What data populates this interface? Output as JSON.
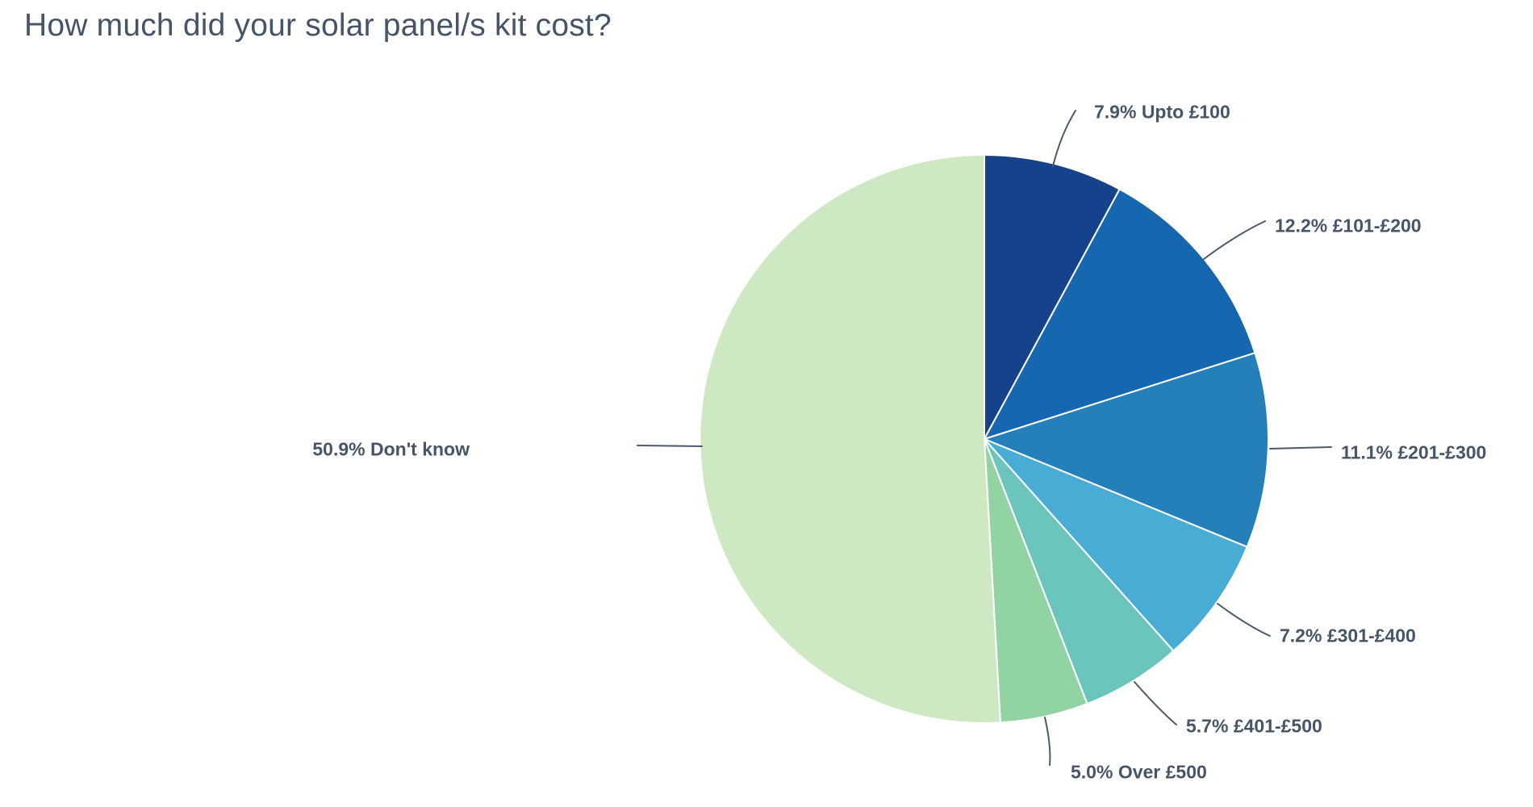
{
  "page": {
    "background": "#ffffff"
  },
  "chart_data": {
    "type": "pie",
    "title": "How much did your solar panel/s kit cost?",
    "direction": "clockwise",
    "start_angle_deg": 0,
    "total_percent": 100.0,
    "labels_position": "outside with leader lines",
    "label_color": "#475569",
    "leader_color": "#4a5a6a",
    "slices": [
      {
        "label": "Upto £100",
        "value": 7.9,
        "display": "7.9% Upto £100",
        "color": "#15428b"
      },
      {
        "label": "£101-£200",
        "value": 12.2,
        "display": "12.2% £101-£200",
        "color": "#1667b0"
      },
      {
        "label": "£201-£300",
        "value": 11.1,
        "display": "11.1% £201-£300",
        "color": "#2580b9"
      },
      {
        "label": "£301-£400",
        "value": 7.2,
        "display": "7.2% £301-£400",
        "color": "#49acd5"
      },
      {
        "label": "£401-£500",
        "value": 5.7,
        "display": "5.7% £401-£500",
        "color": "#6bc5bc"
      },
      {
        "label": "Over £500",
        "value": 5.0,
        "display": "5.0% Over £500",
        "color": "#91d3a2"
      },
      {
        "label": "Don't know",
        "value": 50.9,
        "display": "50.9% Don't know",
        "color": "#cde8c3"
      }
    ]
  }
}
